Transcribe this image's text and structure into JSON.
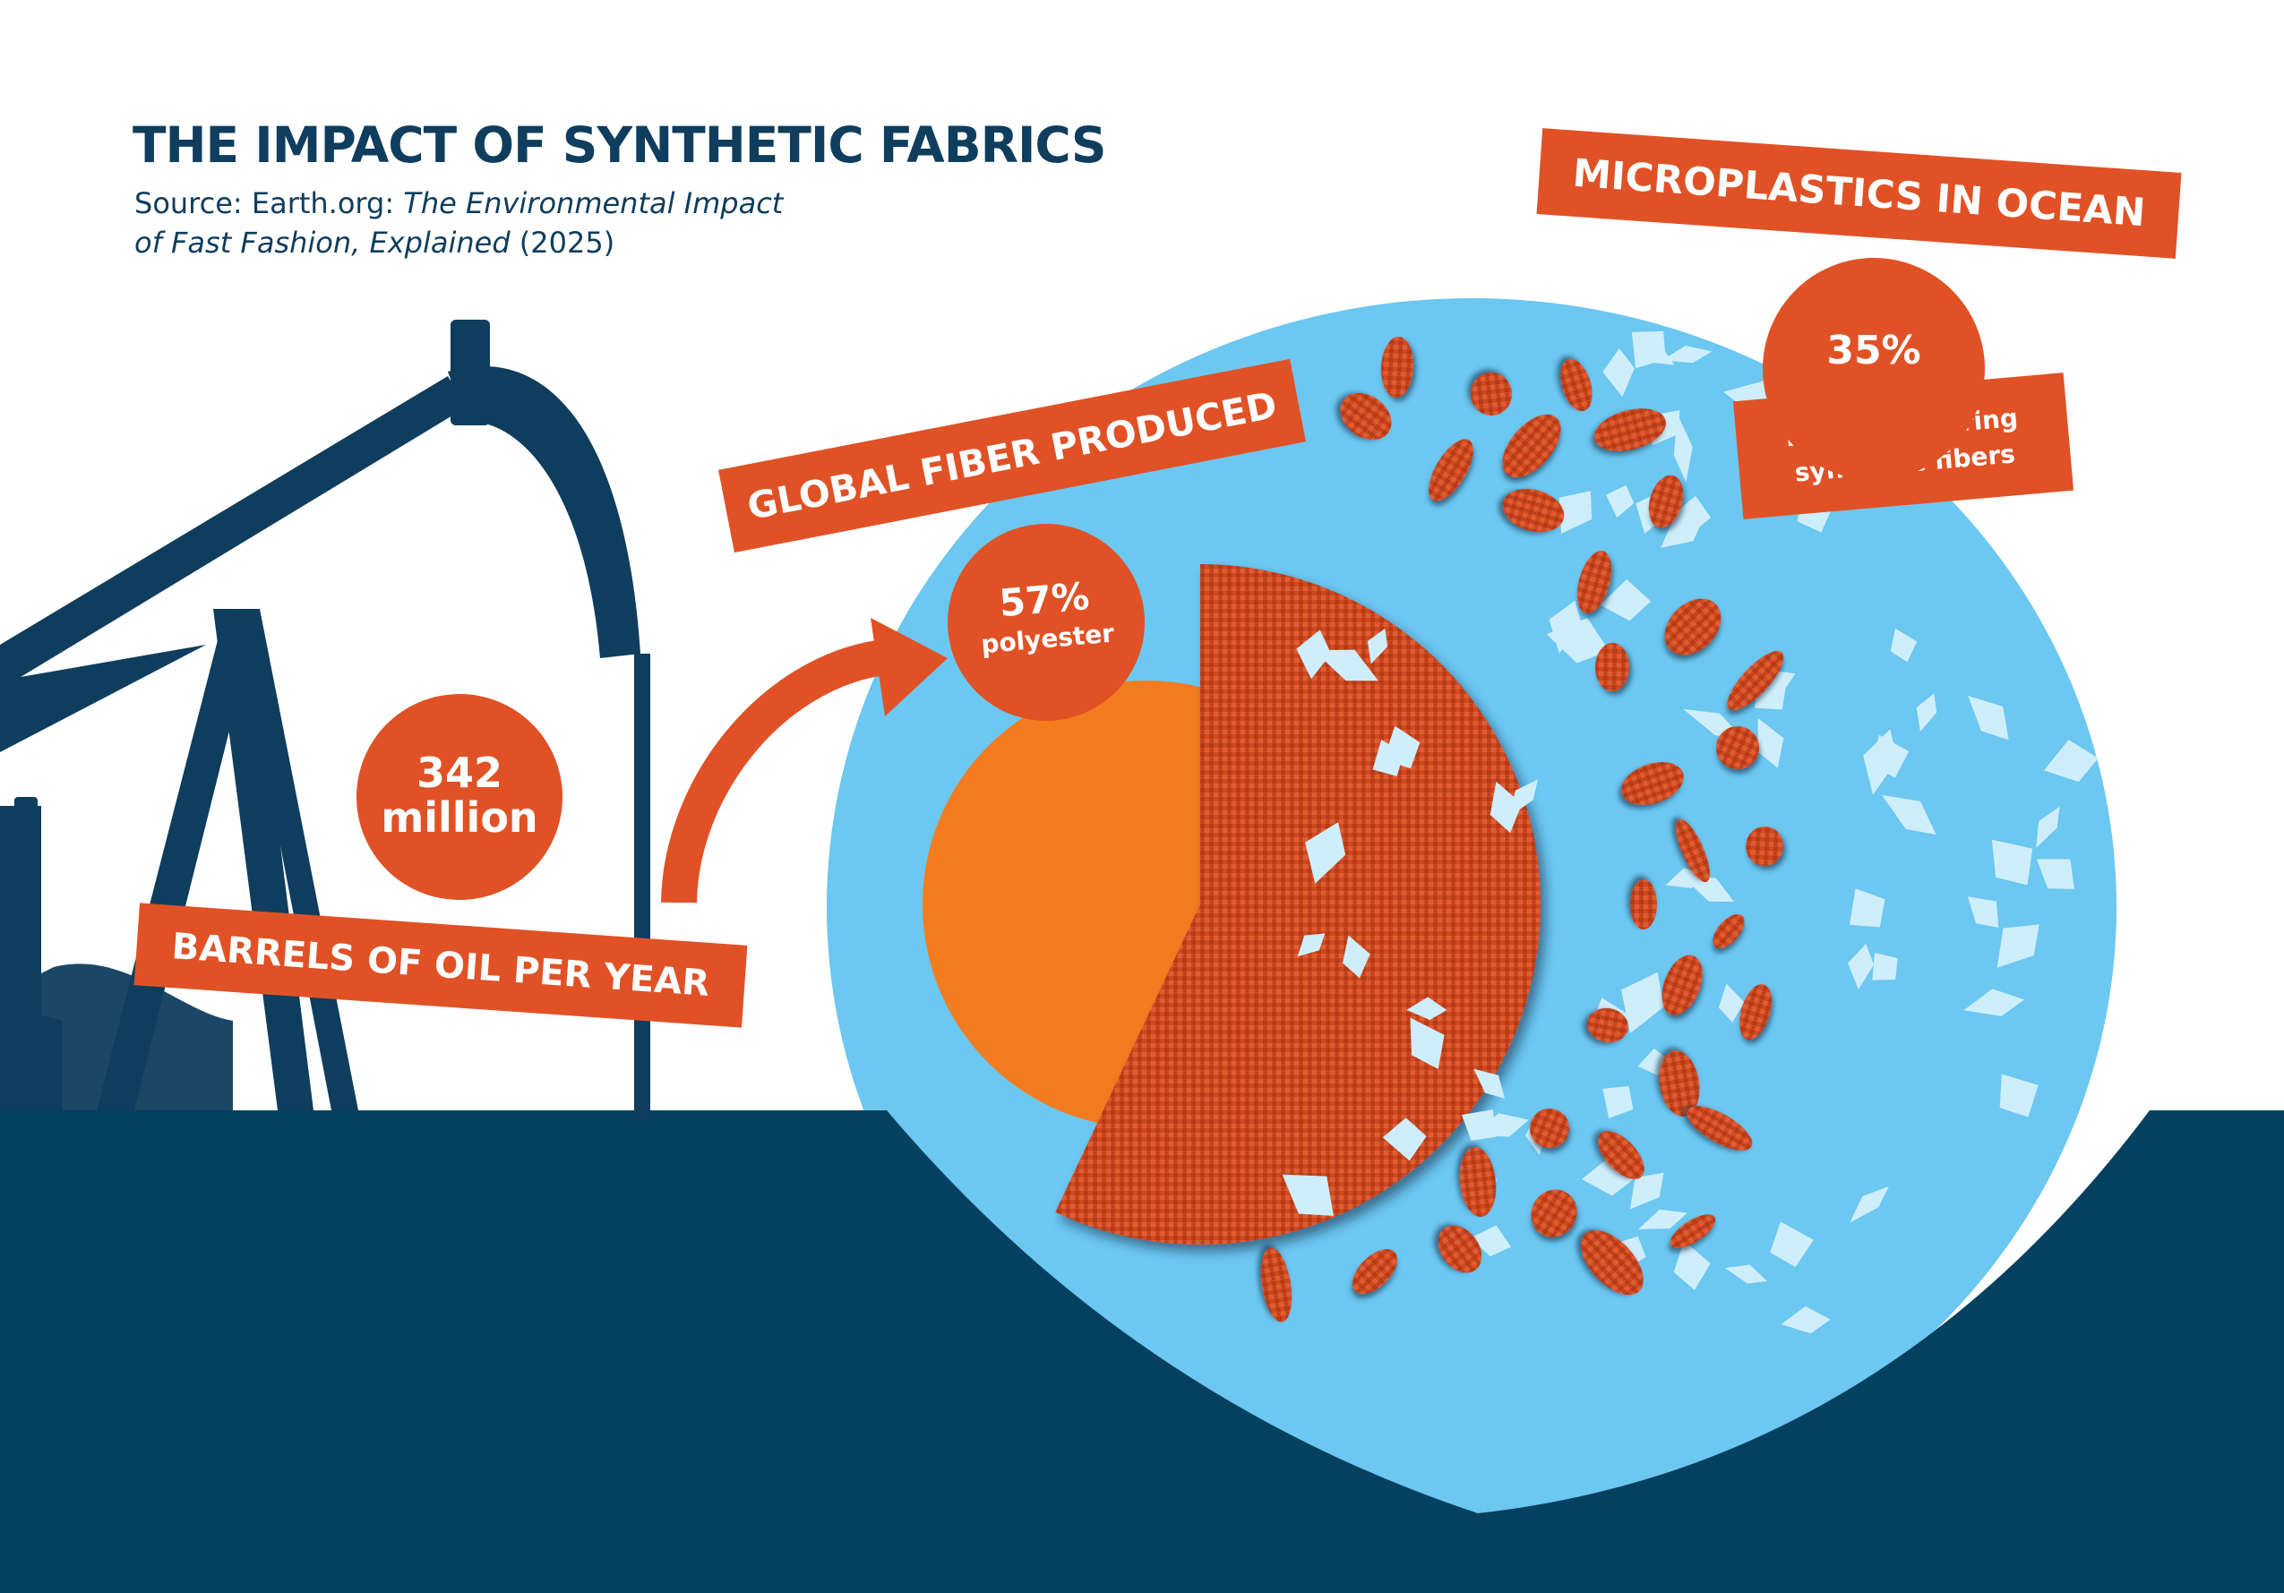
{
  "title": "THE IMPACT OF SYNTHETIC FABRICS",
  "source": {
    "prefix": "Source: Earth.org: ",
    "article_line1": "The Environmental Impact",
    "article_line2": "of Fast Fashion, Explained",
    "year": " (2025)"
  },
  "oil": {
    "value_line1": "342",
    "value_line2": "million",
    "label": "BARRELS OF OIL PER YEAR"
  },
  "fiber": {
    "label": "GLOBAL FIBER PRODUCED",
    "value": "57%",
    "value_label": "polyester",
    "polyester_share": 0.57
  },
  "microplastics": {
    "label": "MICROPLASTICS IN OCEAN",
    "value": "35%",
    "value_label_line1": "From laundering",
    "value_label_line2": "synthetic fibers"
  },
  "colors": {
    "navy": "#0f3d5d",
    "ocean_floor": "#04405f",
    "bubble": "#6cc7f1",
    "accent": "#e05226",
    "pie_orange": "#f47c20",
    "fabric": "#cf4a22",
    "flake": "#cfeefc"
  }
}
